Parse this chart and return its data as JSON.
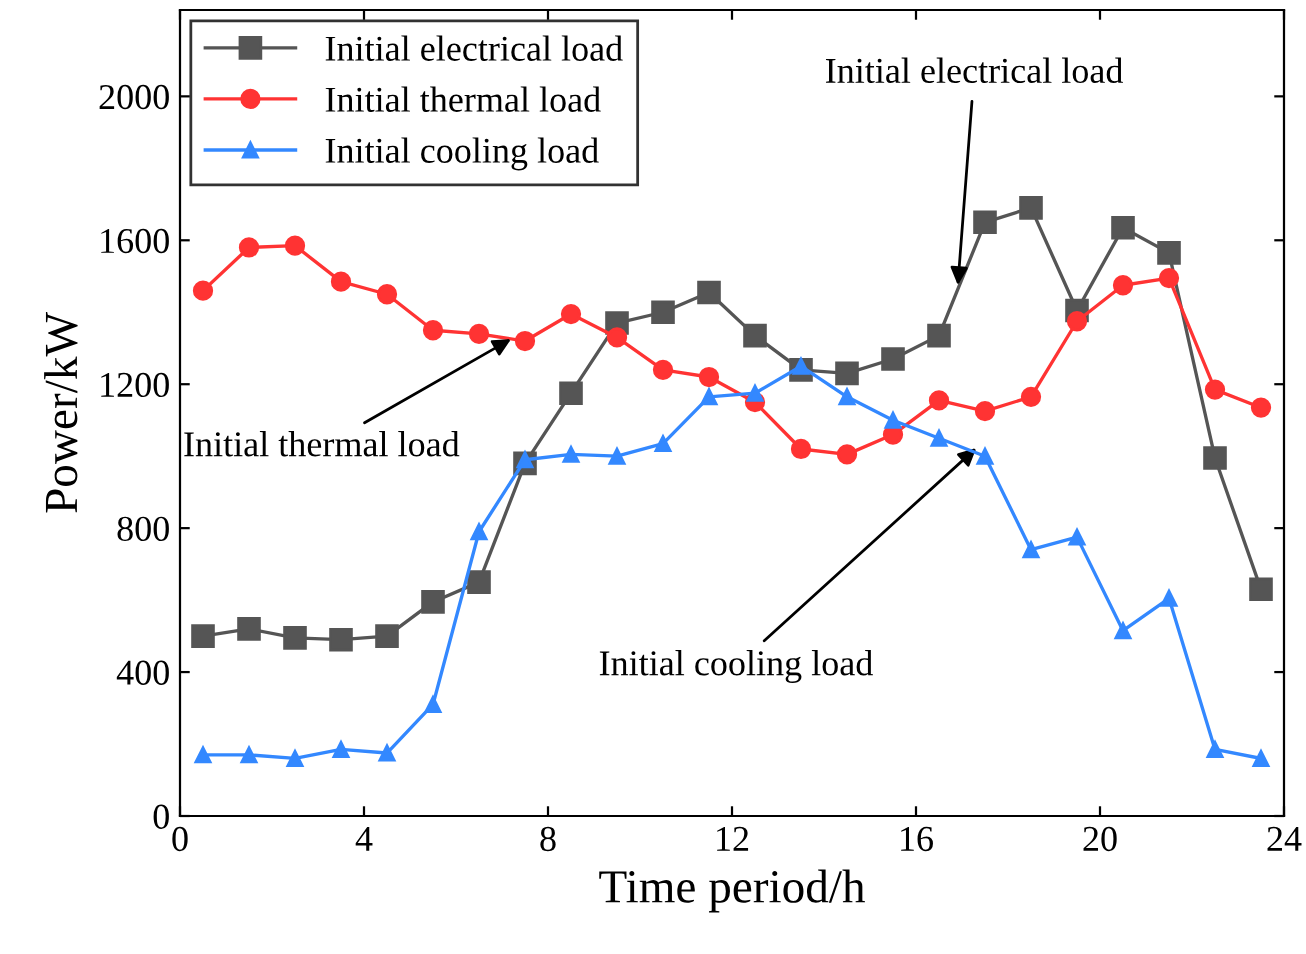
{
  "chart_data": {
    "type": "line",
    "xlabel": "Time period/h",
    "ylabel": "Power/kW",
    "x": [
      0.5,
      1.5,
      2.5,
      3.5,
      4.5,
      5.5,
      6.5,
      7.5,
      8.5,
      9.5,
      10.5,
      11.5,
      12.5,
      13.5,
      14.5,
      15.5,
      16.5,
      17.5,
      18.5,
      19.5,
      20.5,
      21.5,
      22.5,
      23.5
    ],
    "series": [
      {
        "name": "Initial electrical load",
        "color": "#555555",
        "marker": "square",
        "values": [
          500,
          520,
          495,
          490,
          500,
          595,
          650,
          980,
          1175,
          1370,
          1400,
          1455,
          1335,
          1240,
          1230,
          1270,
          1335,
          1650,
          1690,
          1405,
          1635,
          1565,
          995,
          630
        ]
      },
      {
        "name": "Initial thermal load",
        "color": "#ff3333",
        "marker": "circle",
        "values": [
          1460,
          1580,
          1585,
          1485,
          1450,
          1350,
          1340,
          1320,
          1395,
          1330,
          1240,
          1220,
          1150,
          1020,
          1005,
          1060,
          1155,
          1125,
          1165,
          1375,
          1475,
          1495,
          1185,
          1135
        ]
      },
      {
        "name": "Initial cooling load",
        "color": "#3388ff",
        "marker": "triangle",
        "values": [
          170,
          170,
          160,
          185,
          175,
          310,
          790,
          990,
          1005,
          1000,
          1035,
          1165,
          1175,
          1250,
          1165,
          1100,
          1050,
          1000,
          740,
          775,
          515,
          605,
          185,
          160
        ]
      }
    ],
    "xlim": [
      0,
      24
    ],
    "xticks": [
      0,
      4,
      8,
      12,
      16,
      20,
      24
    ],
    "ylim": [
      0,
      2240
    ],
    "yticks": [
      0,
      400,
      800,
      1200,
      1600,
      2000
    ],
    "grid": false,
    "legend": "top left",
    "annotations": [
      {
        "text": "Initial electrical load",
        "x": 16.9,
        "y": 1460
      },
      {
        "text": "Initial thermal load",
        "x": 7.3,
        "y": 1333
      },
      {
        "text": "Initial cooling load",
        "x": 17.4,
        "y": 1033
      }
    ]
  }
}
